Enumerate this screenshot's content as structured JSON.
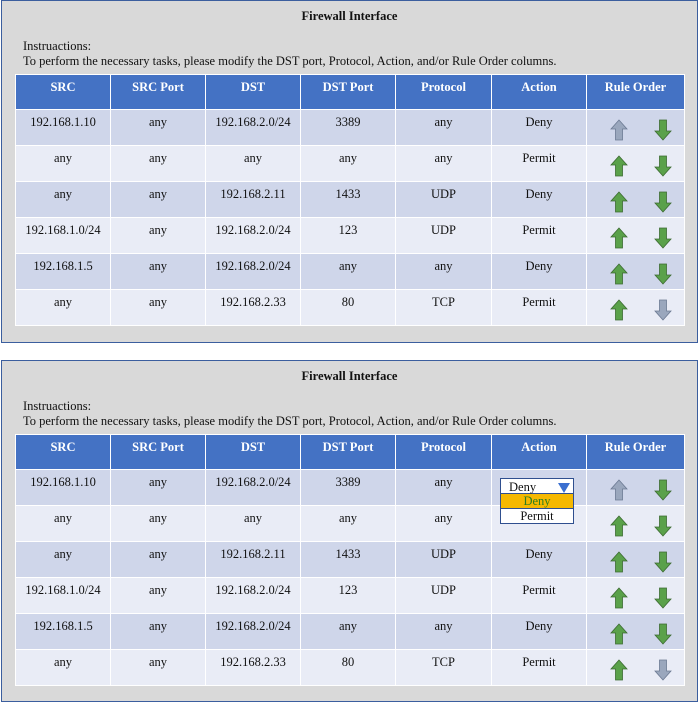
{
  "panels": [
    {
      "title": "Firewall Interface",
      "instructions_label": "Instruactions:",
      "instructions_text": "To perform the necessary tasks, please modify the DST port, Protocol, Action, and/or Rule Order columns.",
      "headers": [
        "SRC",
        "SRC Port",
        "DST",
        "DST Port",
        "Protocol",
        "Action",
        "Rule Order"
      ],
      "rows": [
        {
          "src": "192.168.1.10",
          "src_port": "any",
          "dst": "192.168.2.0/24",
          "dst_port": "3389",
          "protocol": "any",
          "action": "Deny"
        },
        {
          "src": "any",
          "src_port": "any",
          "dst": "any",
          "dst_port": "any",
          "protocol": "any",
          "action": "Permit"
        },
        {
          "src": "any",
          "src_port": "any",
          "dst": "192.168.2.11",
          "dst_port": "1433",
          "protocol": "UDP",
          "action": "Deny"
        },
        {
          "src": "192.168.1.0/24",
          "src_port": "any",
          "dst": "192.168.2.0/24",
          "dst_port": "123",
          "protocol": "UDP",
          "action": "Permit"
        },
        {
          "src": "192.168.1.5",
          "src_port": "any",
          "dst": "192.168.2.0/24",
          "dst_port": "any",
          "protocol": "any",
          "action": "Deny"
        },
        {
          "src": "any",
          "src_port": "any",
          "dst": "192.168.2.33",
          "dst_port": "80",
          "protocol": "TCP",
          "action": "Permit"
        }
      ]
    },
    {
      "title": "Firewall Interface",
      "instructions_label": "Instruactions:",
      "instructions_text": "To perform the necessary tasks, please modify the DST port, Protocol, Action, and/or Rule Order columns.",
      "headers": [
        "SRC",
        "SRC Port",
        "DST",
        "DST Port",
        "Protocol",
        "Action",
        "Rule Order"
      ],
      "rows": [
        {
          "src": "192.168.1.10",
          "src_port": "any",
          "dst": "192.168.2.0/24",
          "dst_port": "3389",
          "protocol": "any",
          "action": ""
        },
        {
          "src": "any",
          "src_port": "any",
          "dst": "any",
          "dst_port": "any",
          "protocol": "any",
          "action": ""
        },
        {
          "src": "any",
          "src_port": "any",
          "dst": "192.168.2.11",
          "dst_port": "1433",
          "protocol": "UDP",
          "action": "Deny"
        },
        {
          "src": "192.168.1.0/24",
          "src_port": "any",
          "dst": "192.168.2.0/24",
          "dst_port": "123",
          "protocol": "UDP",
          "action": "Permit"
        },
        {
          "src": "192.168.1.5",
          "src_port": "any",
          "dst": "192.168.2.0/24",
          "dst_port": "any",
          "protocol": "any",
          "action": "Deny"
        },
        {
          "src": "any",
          "src_port": "any",
          "dst": "192.168.2.33",
          "dst_port": "80",
          "protocol": "TCP",
          "action": "Permit"
        }
      ],
      "action_dropdown": {
        "selected": "Deny",
        "options": [
          "Deny",
          "Permit"
        ],
        "highlighted_option": "Deny"
      }
    }
  ],
  "arrow_icons": {
    "up": "arrow-up-icon",
    "down": "arrow-down-icon"
  },
  "colors": {
    "header_bg": "#4472c4",
    "row_odd": "#cfd6ea",
    "row_even": "#e9ecf6",
    "arrow_active": "#5aa14a",
    "arrow_disabled": "#9aa7bd",
    "dropdown_highlight": "#f5b800"
  }
}
